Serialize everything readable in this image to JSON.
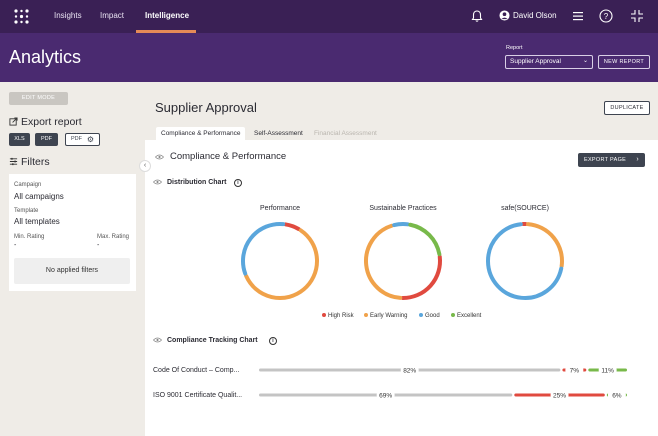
{
  "nav": {
    "items": [
      {
        "label": "Insights"
      },
      {
        "label": "Impact"
      },
      {
        "label": "Intelligence",
        "active": true
      }
    ],
    "user_name": "David Olson",
    "icons": [
      "bell-icon",
      "user-avatar-icon",
      "menu-icon",
      "help-icon",
      "collapse-icon"
    ]
  },
  "header": {
    "title": "Analytics",
    "report_label": "Report",
    "report_value": "Supplier Approval",
    "new_report": "NEW REPORT"
  },
  "sidebar": {
    "edit_mode": "EDIT MODE",
    "export_title": "Export report",
    "export_buttons": [
      "XLS",
      "PDF",
      "PDF"
    ],
    "filters_title": "Filters",
    "campaign_label": "Campaign",
    "campaign_value": "All campaigns",
    "template_label": "Template",
    "template_value": "All templates",
    "min_rating_label": "Min. Rating",
    "min_rating_value": "-",
    "max_rating_label": "Max. Rating",
    "max_rating_value": "-",
    "no_filters": "No applied filters"
  },
  "main": {
    "title": "Supplier Approval",
    "duplicate": "DUPLICATE",
    "tabs": [
      {
        "label": "Compliance & Performance",
        "active": true
      },
      {
        "label": "Self-Assessment"
      },
      {
        "label": "Financial Assessment",
        "disabled": true
      }
    ],
    "section_title": "Compliance & Performance",
    "export_page": "EXPORT PAGE",
    "distribution_title": "Distribution Chart",
    "tracking_title": "Compliance Tracking Chart"
  },
  "colors": {
    "high_risk": "#e04a3f",
    "early_warning": "#f0a24a",
    "good": "#5aa6dc",
    "excellent": "#78b94a",
    "neutral": "#c4c4c4"
  },
  "chart_data": [
    {
      "type": "pie",
      "title": "",
      "donuts": [
        {
          "label": "Performance",
          "values": [
            {
              "name": "High Risk",
              "value": 7
            },
            {
              "name": "Early Warning",
              "value": 60
            },
            {
              "name": "Good",
              "value": 33
            },
            {
              "name": "Excellent",
              "value": 0
            }
          ]
        },
        {
          "label": "Sustainable Practices",
          "values": [
            {
              "name": "High Risk",
              "value": 28
            },
            {
              "name": "Early Warning",
              "value": 45
            },
            {
              "name": "Good",
              "value": 7
            },
            {
              "name": "Excellent",
              "value": 20
            }
          ]
        },
        {
          "label": "safe(SOURCE)",
          "values": [
            {
              "name": "High Risk",
              "value": 2
            },
            {
              "name": "Early Warning",
              "value": 27
            },
            {
              "name": "Good",
              "value": 71
            },
            {
              "name": "Excellent",
              "value": 0
            }
          ]
        }
      ],
      "legend": [
        "High Risk",
        "Early Warning",
        "Good",
        "Excellent"
      ]
    },
    {
      "type": "bar",
      "title": "",
      "categories": [
        "Code Of Conduct – Comp...",
        "ISO 9001 Certificate Qualit..."
      ],
      "series": [
        {
          "name": "",
          "values": [
            82,
            69
          ]
        },
        {
          "name": "",
          "values": [
            7,
            25
          ]
        },
        {
          "name": "",
          "values": [
            11,
            6
          ]
        }
      ],
      "labels": [
        [
          "82%",
          "7%",
          "11%"
        ],
        [
          "69%",
          "25%",
          "6%"
        ]
      ]
    }
  ]
}
